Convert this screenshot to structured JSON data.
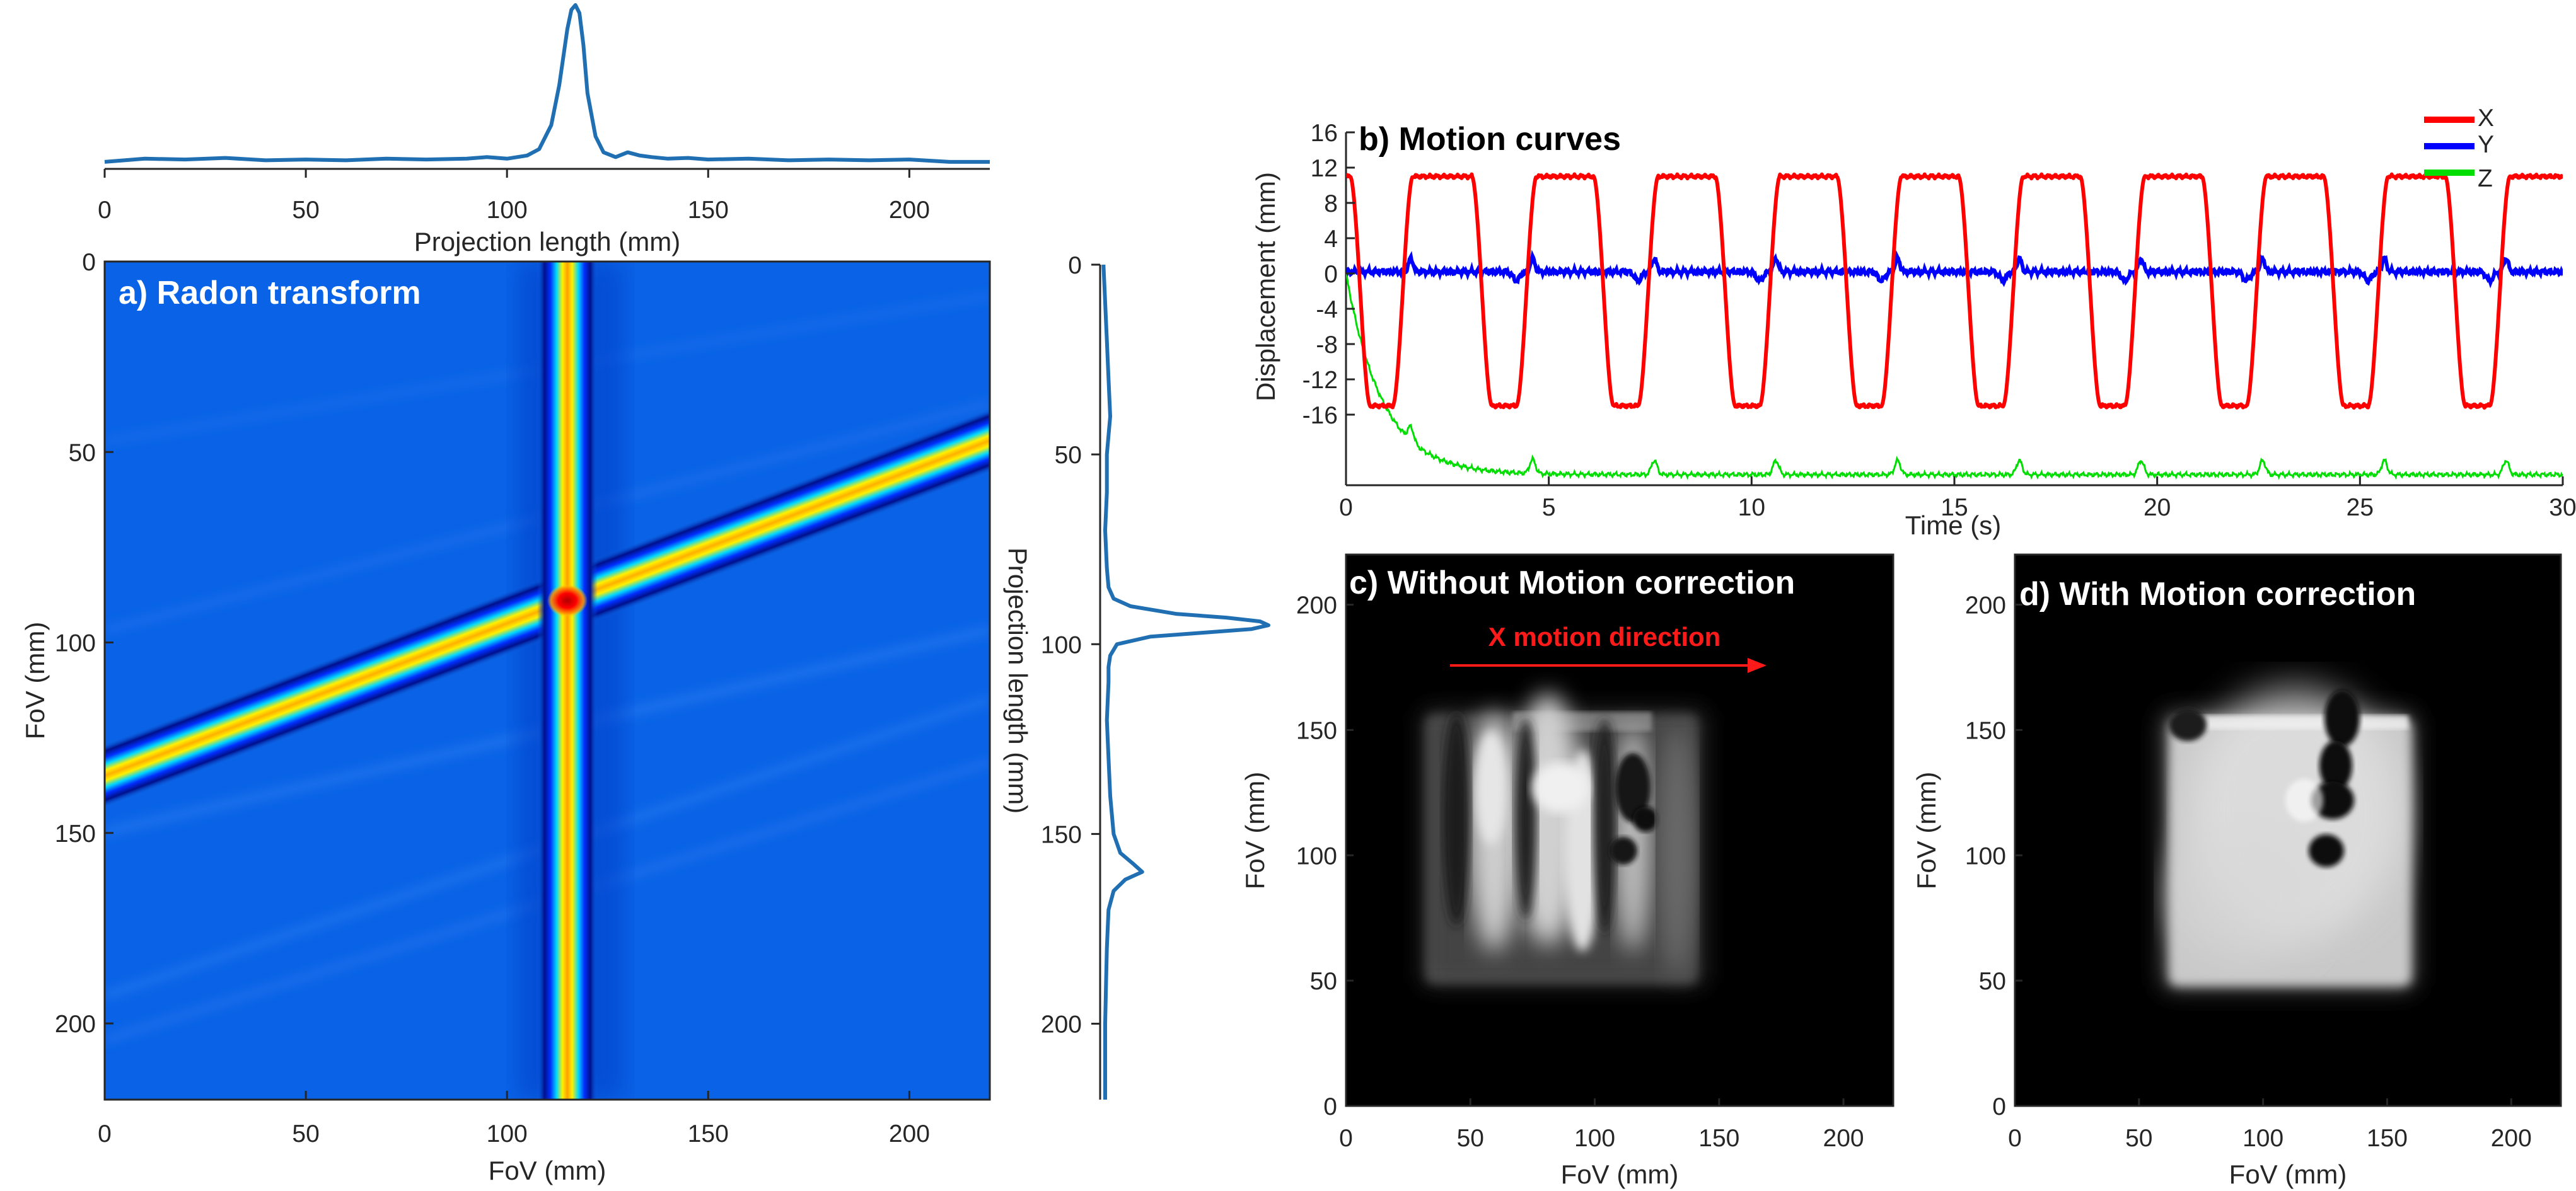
{
  "colors": {
    "radon_background": "#0a63e6",
    "x_curve": "#ff0000",
    "y_curve": "#0000ff",
    "z_curve": "#00dd00",
    "profile_line": "#1f6fb2",
    "annotation_arrow": "#ff1a1a",
    "axis": "#262626"
  },
  "chart_data": [
    {
      "id": "top-profile",
      "type": "line",
      "title": "",
      "xlabel": "Projection length (mm)",
      "ylabel": "",
      "xlim": [
        0,
        220
      ],
      "ylim": [
        0,
        1
      ],
      "xticks": [
        "0",
        "50",
        "100",
        "150",
        "200"
      ],
      "xtick_values": [
        0,
        50,
        100,
        150,
        200
      ],
      "x": [
        0,
        10,
        20,
        30,
        40,
        50,
        60,
        70,
        80,
        90,
        95,
        100,
        105,
        108,
        111,
        113,
        115,
        116,
        117,
        118,
        119,
        120,
        122,
        124,
        127,
        130,
        133,
        136,
        140,
        145,
        150,
        160,
        170,
        180,
        190,
        200,
        210,
        220
      ],
      "values": [
        0.02,
        0.04,
        0.035,
        0.045,
        0.03,
        0.035,
        0.03,
        0.04,
        0.035,
        0.04,
        0.05,
        0.04,
        0.06,
        0.1,
        0.25,
        0.5,
        0.85,
        0.97,
        1.0,
        0.95,
        0.75,
        0.45,
        0.18,
        0.08,
        0.05,
        0.08,
        0.06,
        0.05,
        0.04,
        0.045,
        0.035,
        0.04,
        0.03,
        0.035,
        0.03,
        0.035,
        0.02,
        0.02
      ]
    },
    {
      "id": "radon",
      "type": "heatmap",
      "title": "a) Radon transform",
      "xlabel": "FoV  (mm)",
      "ylabel": "FoV (mm)",
      "xlim": [
        0,
        220
      ],
      "ylim": [
        0,
        220
      ],
      "xticks": [
        "0",
        "50",
        "100",
        "150",
        "200"
      ],
      "yticks": [
        "0",
        "50",
        "100",
        "150",
        "200"
      ],
      "tick_values": [
        0,
        50,
        100,
        150,
        200
      ],
      "vertical_line_x": 115,
      "diagonal_line": {
        "x1": 0,
        "y1": 135,
        "x2": 220,
        "y2": 47
      },
      "hotspot": {
        "x": 115,
        "y": 89
      }
    },
    {
      "id": "right-profile",
      "type": "line",
      "title": "",
      "xlabel": "",
      "ylabel": "Projection length (mm)",
      "ylim": [
        0,
        220
      ],
      "yticks": [
        "0",
        "50",
        "100",
        "150",
        "200"
      ],
      "ytick_values": [
        0,
        50,
        100,
        150,
        200
      ],
      "y": [
        0,
        10,
        20,
        30,
        40,
        45,
        50,
        60,
        70,
        80,
        85,
        88,
        90,
        92,
        93,
        94,
        95,
        96,
        97,
        98,
        100,
        103,
        106,
        110,
        120,
        130,
        140,
        150,
        155,
        158,
        160,
        162,
        165,
        170,
        180,
        190,
        200,
        210,
        220
      ],
      "values": [
        0.02,
        0.03,
        0.04,
        0.05,
        0.06,
        0.05,
        0.04,
        0.04,
        0.03,
        0.04,
        0.05,
        0.08,
        0.18,
        0.45,
        0.75,
        0.95,
        1.0,
        0.9,
        0.6,
        0.3,
        0.1,
        0.06,
        0.05,
        0.05,
        0.04,
        0.05,
        0.06,
        0.08,
        0.12,
        0.2,
        0.25,
        0.15,
        0.08,
        0.05,
        0.04,
        0.035,
        0.03,
        0.03,
        0.03
      ]
    },
    {
      "id": "motion",
      "type": "line",
      "title": "b) Motion curves",
      "xlabel": "Time (s)",
      "ylabel": "Displacement (mm)",
      "xlim": [
        0,
        30
      ],
      "ylim": [
        -24,
        16
      ],
      "xticks": [
        "0",
        "5",
        "10",
        "15",
        "20",
        "25",
        "30"
      ],
      "xtick_values": [
        0,
        5,
        10,
        15,
        20,
        25,
        30
      ],
      "yticks": [
        "16",
        "12",
        "8",
        "4",
        "0",
        "-4",
        "-8",
        "-12",
        "-16"
      ],
      "ytick_values": [
        16,
        12,
        8,
        4,
        0,
        -4,
        -8,
        -12,
        -16
      ],
      "legend": [
        "X",
        "Y",
        "Z"
      ],
      "legend_position": "top-right",
      "series": [
        {
          "name": "X",
          "period_s": 3.0,
          "high_mm": 11,
          "low_mm": -15,
          "start_mm": 11,
          "high_plateaus_s": [
            [
              0,
              0.1
            ],
            [
              1.65,
              3.1
            ],
            [
              4.7,
              6.1
            ],
            [
              7.7,
              9.1
            ],
            [
              10.7,
              12.1
            ],
            [
              13.7,
              15.1
            ],
            [
              16.7,
              18.1
            ],
            [
              19.7,
              21.1
            ],
            [
              22.7,
              24.1
            ],
            [
              25.7,
              27.1
            ],
            [
              28.7,
              30.0
            ]
          ],
          "low_plateaus_s": [
            [
              0.6,
              1.15
            ],
            [
              3.6,
              4.2
            ],
            [
              6.6,
              7.2
            ],
            [
              9.6,
              10.2
            ],
            [
              12.6,
              13.2
            ],
            [
              15.6,
              16.2
            ],
            [
              18.6,
              19.2
            ],
            [
              21.6,
              22.2
            ],
            [
              24.6,
              25.2
            ],
            [
              27.6,
              28.2
            ]
          ]
        },
        {
          "name": "Y",
          "baseline_mm": 0.2,
          "spike_times_s": [
            1.6,
            4.6,
            7.6,
            10.6,
            13.6,
            16.6,
            19.6,
            22.6,
            25.6,
            28.6
          ],
          "spike_mm": 1.5,
          "dip_times_s": [
            4.2,
            7.2,
            10.2,
            13.2,
            16.2,
            19.2,
            22.2,
            25.2,
            28.2
          ],
          "dip_mm": -1.0
        },
        {
          "name": "Z",
          "start_mm": 0,
          "baseline_mm": -22.8,
          "decay_s": 0.9,
          "spike_times_s": [
            1.6,
            4.6,
            7.6,
            10.6,
            13.6,
            16.6,
            19.6,
            22.6,
            25.6,
            28.6
          ],
          "spike_mm": 1.6
        }
      ]
    },
    {
      "id": "without-correction",
      "type": "image",
      "title": "c) Without Motion correction",
      "annotation": "X motion direction",
      "xlabel": "FoV (mm)",
      "ylabel": "FoV (mm)",
      "xlim": [
        0,
        220
      ],
      "ylim": [
        0,
        220
      ],
      "xticks": [
        "0",
        "50",
        "100",
        "150",
        "200"
      ],
      "yticks": [
        "200",
        "150",
        "100",
        "50",
        "0"
      ],
      "tick_values": [
        0,
        50,
        100,
        150,
        200
      ]
    },
    {
      "id": "with-correction",
      "type": "image",
      "title": "d) With Motion correction",
      "xlabel": "FoV (mm)",
      "ylabel": "FoV (mm)",
      "xlim": [
        0,
        220
      ],
      "ylim": [
        0,
        220
      ],
      "xticks": [
        "0",
        "50",
        "100",
        "150",
        "200"
      ],
      "yticks": [
        "200",
        "150",
        "100",
        "50",
        "0"
      ],
      "tick_values": [
        0,
        50,
        100,
        150,
        200
      ]
    }
  ]
}
